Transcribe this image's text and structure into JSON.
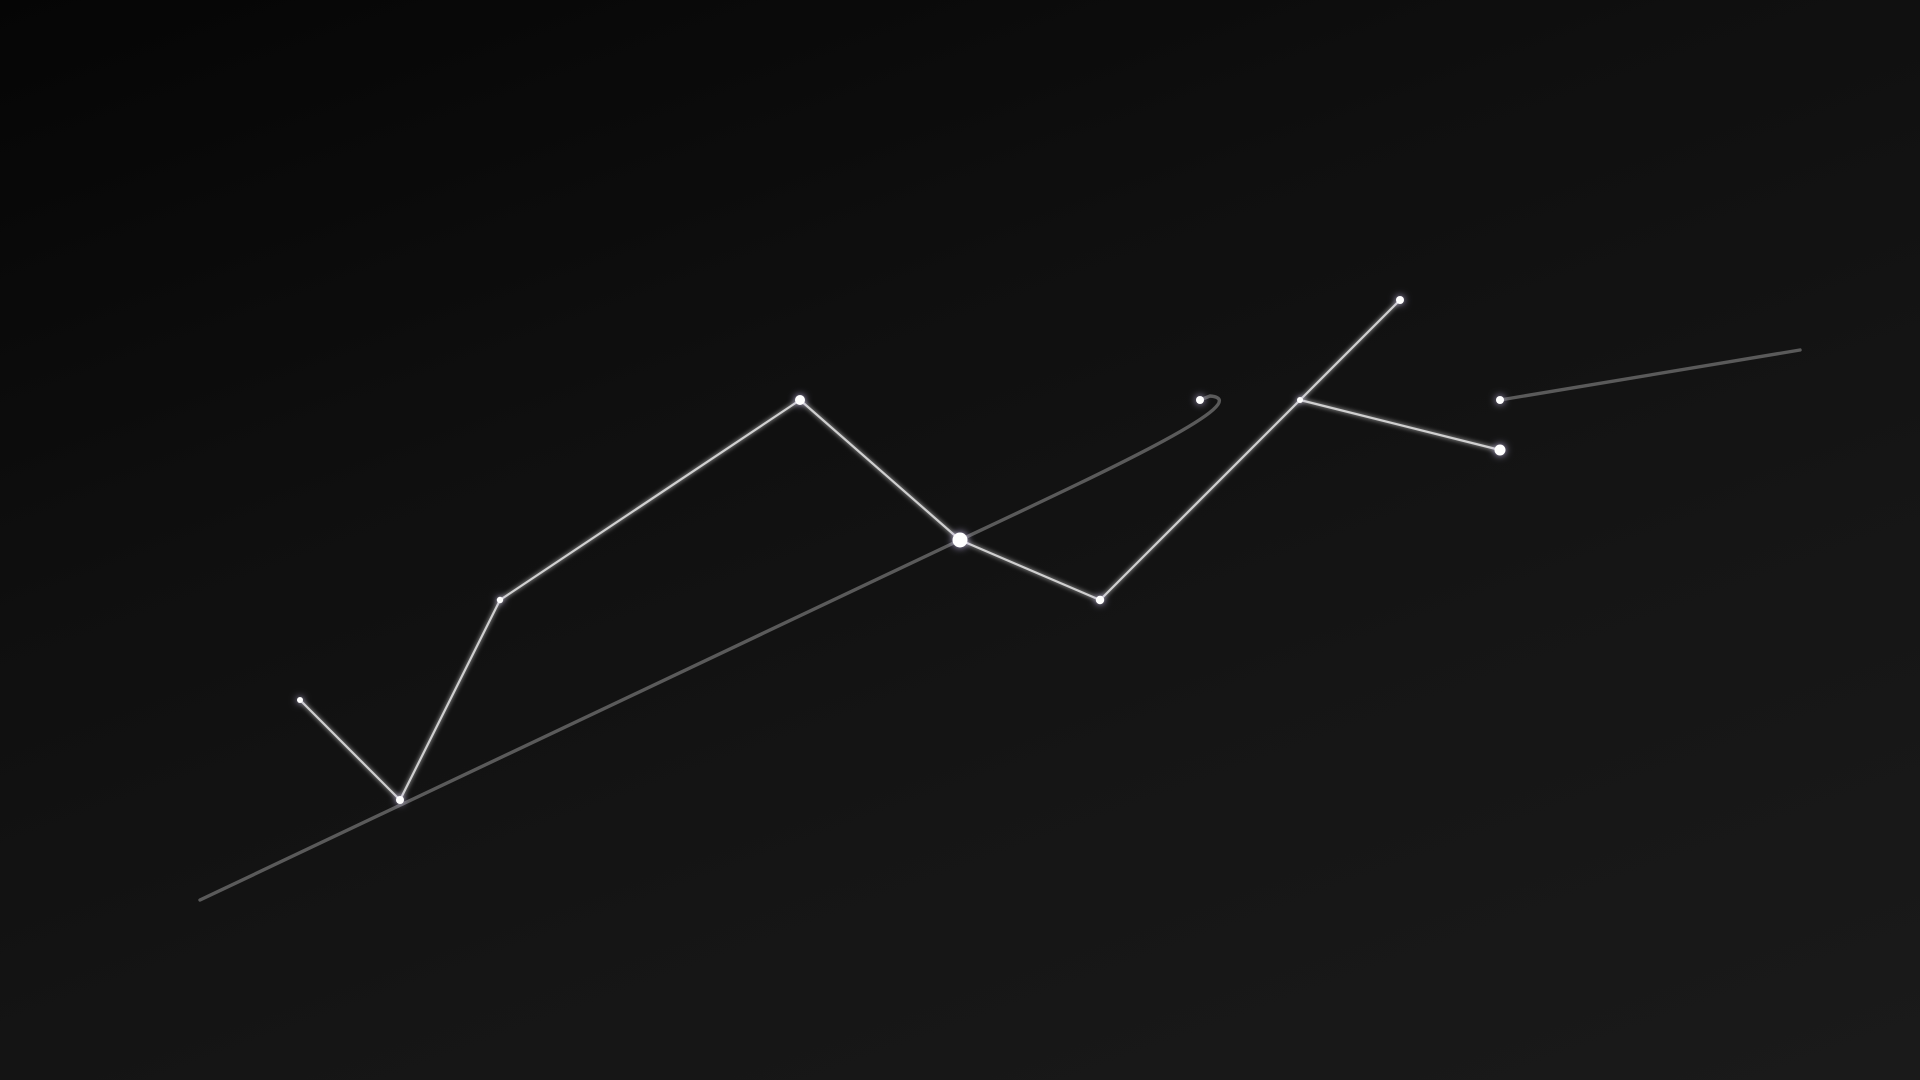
{
  "scene": {
    "description_visible_text": [],
    "colors": {
      "background_dark": "#050505",
      "background_light": "#1a1a1a",
      "edge": "#cfcfcf",
      "guide": "#5a5a5a",
      "star": "#ffffff",
      "star_glow": "#d9ccff"
    }
  }
}
